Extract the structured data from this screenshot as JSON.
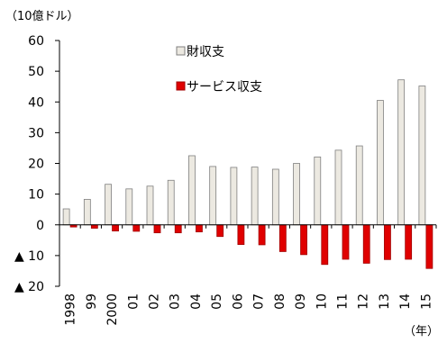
{
  "chart_data": {
    "type": "bar",
    "y_unit_label": "（10億ドル）",
    "x_unit_label": "（年）",
    "categories": [
      "1998",
      "99",
      "2000",
      "01",
      "02",
      "03",
      "04",
      "05",
      "06",
      "07",
      "08",
      "09",
      "10",
      "11",
      "12",
      "13",
      "14",
      "15"
    ],
    "series": [
      {
        "name": "財収支",
        "color": "#ece9e1",
        "stroke": "#7f7f7f",
        "values": [
          5.2,
          8.3,
          13.2,
          11.7,
          12.6,
          14.5,
          22.5,
          19.0,
          18.7,
          18.8,
          18.1,
          20.0,
          22.1,
          24.3,
          25.7,
          40.5,
          47.2,
          45.2
        ]
      },
      {
        "name": "サービス収支",
        "color": "#e00000",
        "stroke": "#a00000",
        "values": [
          -0.7,
          -1.1,
          -2.0,
          -2.1,
          -2.6,
          -2.6,
          -2.3,
          -3.8,
          -6.4,
          -6.5,
          -8.7,
          -9.7,
          -12.9,
          -11.2,
          -12.5,
          -11.3,
          -11.2,
          -14.2
        ]
      }
    ],
    "ylim": [
      -20,
      60
    ],
    "yticks": [
      60,
      50,
      40,
      30,
      20,
      10,
      0,
      -10,
      -20
    ],
    "ytick_labels": [
      "60",
      "50",
      "40",
      "30",
      "20",
      "10",
      "0",
      "▲ 10",
      "▲ 20"
    ],
    "legend_position": "top-center",
    "grid": false
  }
}
